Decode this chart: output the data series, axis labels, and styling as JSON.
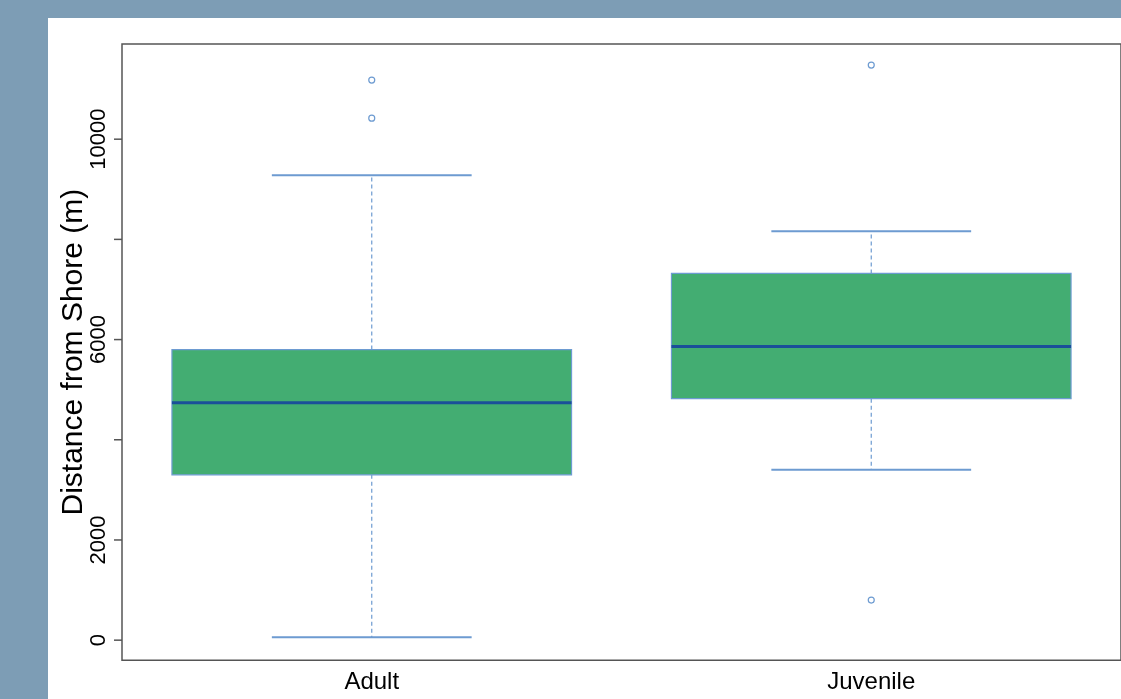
{
  "chart_data": {
    "type": "box",
    "ylabel": "Distance from Shore (m)",
    "categories": [
      "Adult",
      "Juvenile"
    ],
    "boxes": [
      {
        "low": 60,
        "q1": 3300,
        "median": 4740,
        "q3": 5800,
        "high": 9280,
        "outliers": [
          10420,
          11180
        ]
      },
      {
        "low": 3400,
        "q1": 4820,
        "median": 5860,
        "q3": 7320,
        "high": 8160,
        "outliers": [
          11480,
          800
        ]
      }
    ],
    "color": "#43ad72",
    "ylim": [
      -400,
      11900
    ],
    "yticks": [
      0,
      2000,
      {
        "value": 4000,
        "label": null
      },
      6000,
      {
        "value": 8000,
        "label": null
      },
      10000
    ],
    "grid": false,
    "legend": false
  }
}
